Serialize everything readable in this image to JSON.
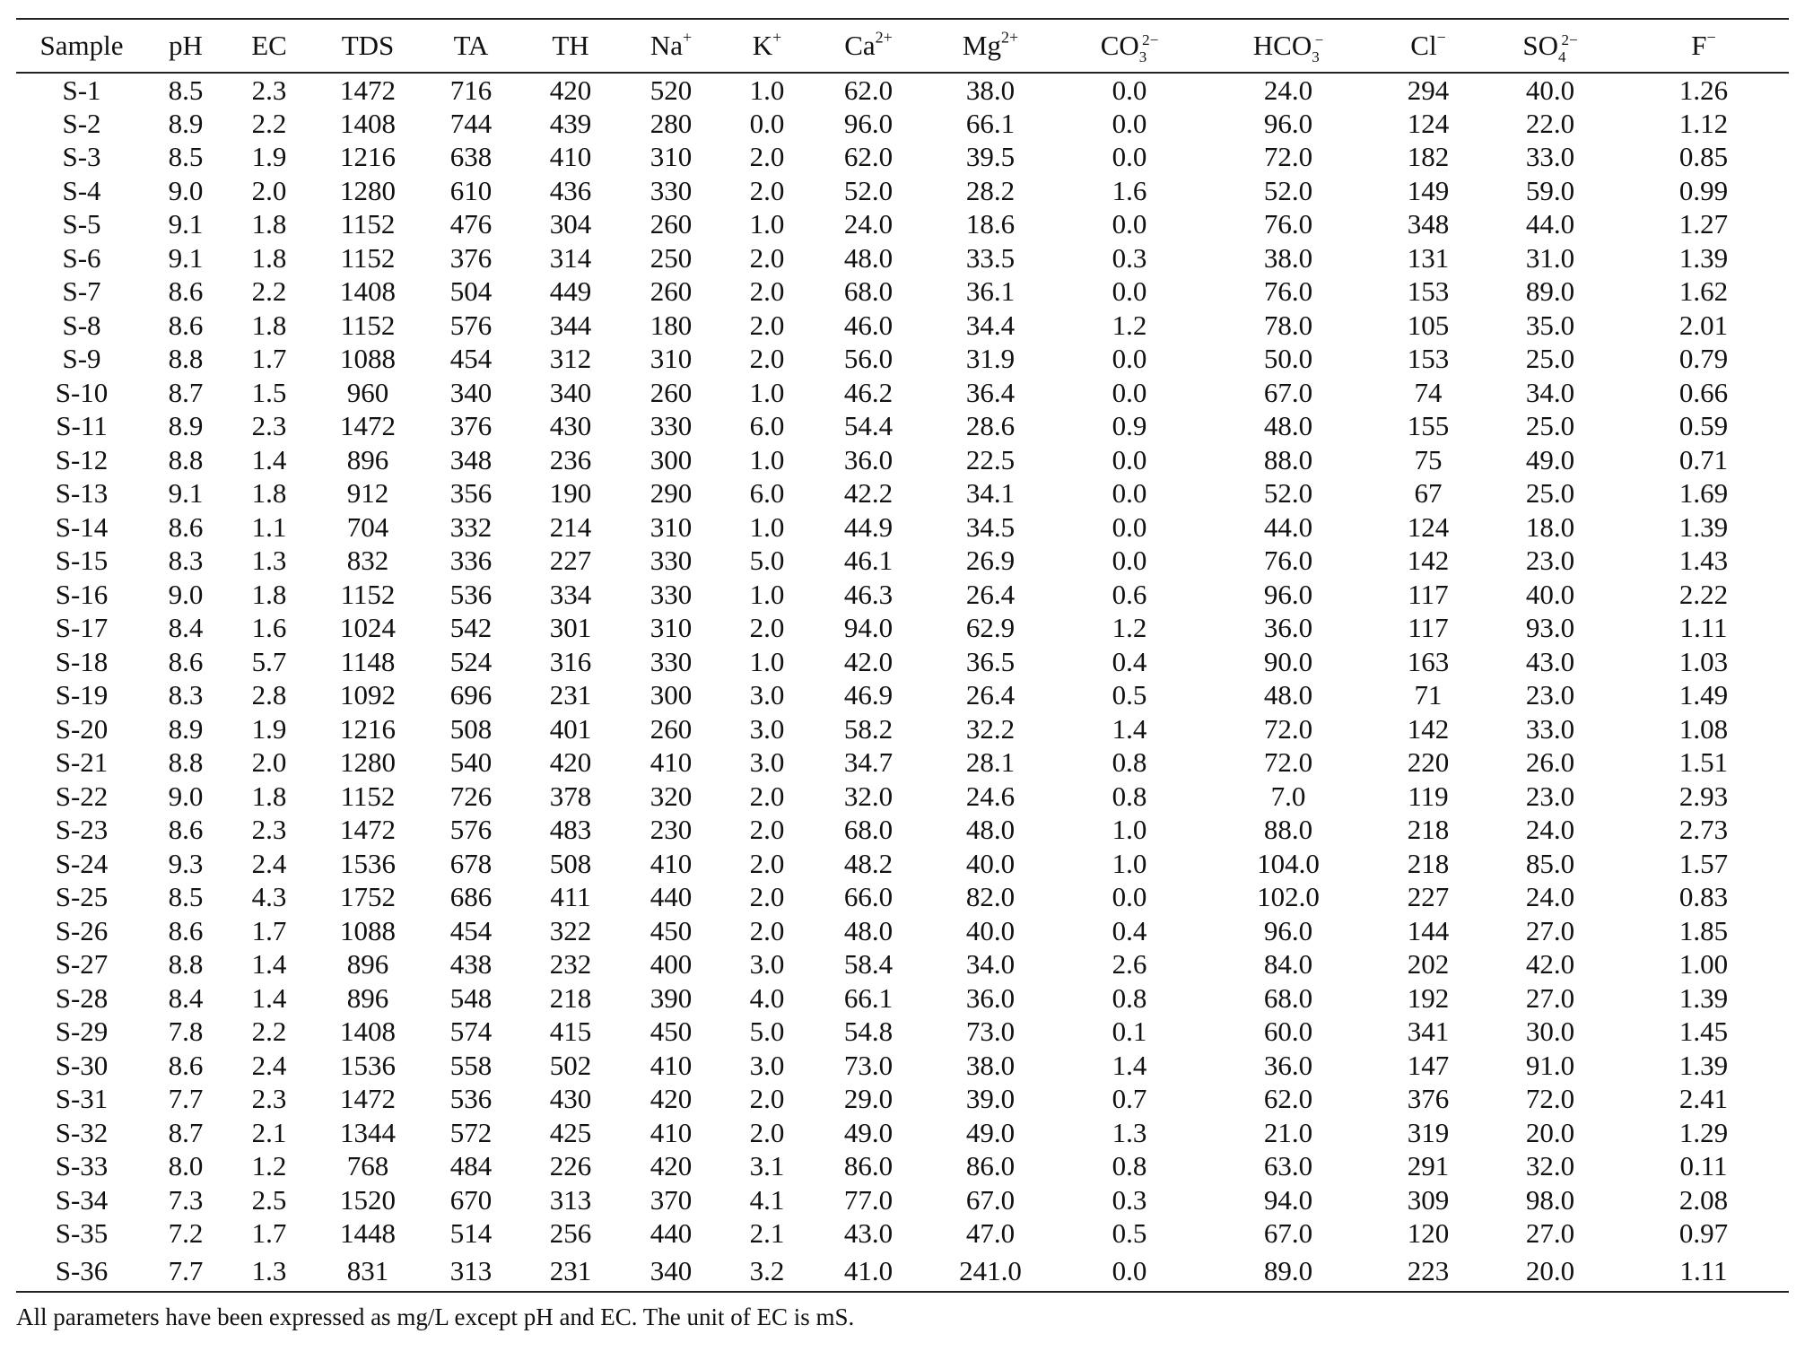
{
  "table": {
    "headers": {
      "sample": "Sample",
      "ph": "pH",
      "ec": "EC",
      "tds": "TDS",
      "ta": "TA",
      "th": "TH",
      "na": {
        "base": "Na",
        "sup": "+"
      },
      "k": {
        "base": "K",
        "sup": "+"
      },
      "ca": {
        "base": "Ca",
        "sup": "2+"
      },
      "mg": {
        "base": "Mg",
        "sup": "2+"
      },
      "co3": {
        "base": "CO",
        "sub": "3",
        "sup": "2−"
      },
      "hco3": {
        "base": "HCO",
        "sub": "3",
        "sup": "−"
      },
      "cl": {
        "base": "Cl",
        "sup": "−"
      },
      "so4": {
        "base": "SO",
        "sub": "4",
        "sup": "2−"
      },
      "f": {
        "base": "F",
        "sup": "−"
      }
    },
    "rows": [
      [
        "S-1",
        "8.5",
        "2.3",
        "1472",
        "716",
        "420",
        "520",
        "1.0",
        "62.0",
        "38.0",
        "0.0",
        "24.0",
        "294",
        "40.0",
        "1.26"
      ],
      [
        "S-2",
        "8.9",
        "2.2",
        "1408",
        "744",
        "439",
        "280",
        "0.0",
        "96.0",
        "66.1",
        "0.0",
        "96.0",
        "124",
        "22.0",
        "1.12"
      ],
      [
        "S-3",
        "8.5",
        "1.9",
        "1216",
        "638",
        "410",
        "310",
        "2.0",
        "62.0",
        "39.5",
        "0.0",
        "72.0",
        "182",
        "33.0",
        "0.85"
      ],
      [
        "S-4",
        "9.0",
        "2.0",
        "1280",
        "610",
        "436",
        "330",
        "2.0",
        "52.0",
        "28.2",
        "1.6",
        "52.0",
        "149",
        "59.0",
        "0.99"
      ],
      [
        "S-5",
        "9.1",
        "1.8",
        "1152",
        "476",
        "304",
        "260",
        "1.0",
        "24.0",
        "18.6",
        "0.0",
        "76.0",
        "348",
        "44.0",
        "1.27"
      ],
      [
        "S-6",
        "9.1",
        "1.8",
        "1152",
        "376",
        "314",
        "250",
        "2.0",
        "48.0",
        "33.5",
        "0.3",
        "38.0",
        "131",
        "31.0",
        "1.39"
      ],
      [
        "S-7",
        "8.6",
        "2.2",
        "1408",
        "504",
        "449",
        "260",
        "2.0",
        "68.0",
        "36.1",
        "0.0",
        "76.0",
        "153",
        "89.0",
        "1.62"
      ],
      [
        "S-8",
        "8.6",
        "1.8",
        "1152",
        "576",
        "344",
        "180",
        "2.0",
        "46.0",
        "34.4",
        "1.2",
        "78.0",
        "105",
        "35.0",
        "2.01"
      ],
      [
        "S-9",
        "8.8",
        "1.7",
        "1088",
        "454",
        "312",
        "310",
        "2.0",
        "56.0",
        "31.9",
        "0.0",
        "50.0",
        "153",
        "25.0",
        "0.79"
      ],
      [
        "S-10",
        "8.7",
        "1.5",
        "960",
        "340",
        "340",
        "260",
        "1.0",
        "46.2",
        "36.4",
        "0.0",
        "67.0",
        "74",
        "34.0",
        "0.66"
      ],
      [
        "S-11",
        "8.9",
        "2.3",
        "1472",
        "376",
        "430",
        "330",
        "6.0",
        "54.4",
        "28.6",
        "0.9",
        "48.0",
        "155",
        "25.0",
        "0.59"
      ],
      [
        "S-12",
        "8.8",
        "1.4",
        "896",
        "348",
        "236",
        "300",
        "1.0",
        "36.0",
        "22.5",
        "0.0",
        "88.0",
        "75",
        "49.0",
        "0.71"
      ],
      [
        "S-13",
        "9.1",
        "1.8",
        "912",
        "356",
        "190",
        "290",
        "6.0",
        "42.2",
        "34.1",
        "0.0",
        "52.0",
        "67",
        "25.0",
        "1.69"
      ],
      [
        "S-14",
        "8.6",
        "1.1",
        "704",
        "332",
        "214",
        "310",
        "1.0",
        "44.9",
        "34.5",
        "0.0",
        "44.0",
        "124",
        "18.0",
        "1.39"
      ],
      [
        "S-15",
        "8.3",
        "1.3",
        "832",
        "336",
        "227",
        "330",
        "5.0",
        "46.1",
        "26.9",
        "0.0",
        "76.0",
        "142",
        "23.0",
        "1.43"
      ],
      [
        "S-16",
        "9.0",
        "1.8",
        "1152",
        "536",
        "334",
        "330",
        "1.0",
        "46.3",
        "26.4",
        "0.6",
        "96.0",
        "117",
        "40.0",
        "2.22"
      ],
      [
        "S-17",
        "8.4",
        "1.6",
        "1024",
        "542",
        "301",
        "310",
        "2.0",
        "94.0",
        "62.9",
        "1.2",
        "36.0",
        "117",
        "93.0",
        "1.11"
      ],
      [
        "S-18",
        "8.6",
        "5.7",
        "1148",
        "524",
        "316",
        "330",
        "1.0",
        "42.0",
        "36.5",
        "0.4",
        "90.0",
        "163",
        "43.0",
        "1.03"
      ],
      [
        "S-19",
        "8.3",
        "2.8",
        "1092",
        "696",
        "231",
        "300",
        "3.0",
        "46.9",
        "26.4",
        "0.5",
        "48.0",
        "71",
        "23.0",
        "1.49"
      ],
      [
        "S-20",
        "8.9",
        "1.9",
        "1216",
        "508",
        "401",
        "260",
        "3.0",
        "58.2",
        "32.2",
        "1.4",
        "72.0",
        "142",
        "33.0",
        "1.08"
      ],
      [
        "S-21",
        "8.8",
        "2.0",
        "1280",
        "540",
        "420",
        "410",
        "3.0",
        "34.7",
        "28.1",
        "0.8",
        "72.0",
        "220",
        "26.0",
        "1.51"
      ],
      [
        "S-22",
        "9.0",
        "1.8",
        "1152",
        "726",
        "378",
        "320",
        "2.0",
        "32.0",
        "24.6",
        "0.8",
        "7.0",
        "119",
        "23.0",
        "2.93"
      ],
      [
        "S-23",
        "8.6",
        "2.3",
        "1472",
        "576",
        "483",
        "230",
        "2.0",
        "68.0",
        "48.0",
        "1.0",
        "88.0",
        "218",
        "24.0",
        "2.73"
      ],
      [
        "S-24",
        "9.3",
        "2.4",
        "1536",
        "678",
        "508",
        "410",
        "2.0",
        "48.2",
        "40.0",
        "1.0",
        "104.0",
        "218",
        "85.0",
        "1.57"
      ],
      [
        "S-25",
        "8.5",
        "4.3",
        "1752",
        "686",
        "411",
        "440",
        "2.0",
        "66.0",
        "82.0",
        "0.0",
        "102.0",
        "227",
        "24.0",
        "0.83"
      ],
      [
        "S-26",
        "8.6",
        "1.7",
        "1088",
        "454",
        "322",
        "450",
        "2.0",
        "48.0",
        "40.0",
        "0.4",
        "96.0",
        "144",
        "27.0",
        "1.85"
      ],
      [
        "S-27",
        "8.8",
        "1.4",
        "896",
        "438",
        "232",
        "400",
        "3.0",
        "58.4",
        "34.0",
        "2.6",
        "84.0",
        "202",
        "42.0",
        "1.00"
      ],
      [
        "S-28",
        "8.4",
        "1.4",
        "896",
        "548",
        "218",
        "390",
        "4.0",
        "66.1",
        "36.0",
        "0.8",
        "68.0",
        "192",
        "27.0",
        "1.39"
      ],
      [
        "S-29",
        "7.8",
        "2.2",
        "1408",
        "574",
        "415",
        "450",
        "5.0",
        "54.8",
        "73.0",
        "0.1",
        "60.0",
        "341",
        "30.0",
        "1.45"
      ],
      [
        "S-30",
        "8.6",
        "2.4",
        "1536",
        "558",
        "502",
        "410",
        "3.0",
        "73.0",
        "38.0",
        "1.4",
        "36.0",
        "147",
        "91.0",
        "1.39"
      ],
      [
        "S-31",
        "7.7",
        "2.3",
        "1472",
        "536",
        "430",
        "420",
        "2.0",
        "29.0",
        "39.0",
        "0.7",
        "62.0",
        "376",
        "72.0",
        "2.41"
      ],
      [
        "S-32",
        "8.7",
        "2.1",
        "1344",
        "572",
        "425",
        "410",
        "2.0",
        "49.0",
        "49.0",
        "1.3",
        "21.0",
        "319",
        "20.0",
        "1.29"
      ],
      [
        "S-33",
        "8.0",
        "1.2",
        "768",
        "484",
        "226",
        "420",
        "3.1",
        "86.0",
        "86.0",
        "0.8",
        "63.0",
        "291",
        "32.0",
        "0.11"
      ],
      [
        "S-34",
        "7.3",
        "2.5",
        "1520",
        "670",
        "313",
        "370",
        "4.1",
        "77.0",
        "67.0",
        "0.3",
        "94.0",
        "309",
        "98.0",
        "2.08"
      ],
      [
        "S-35",
        "7.2",
        "1.7",
        "1448",
        "514",
        "256",
        "440",
        "2.1",
        "43.0",
        "47.0",
        "0.5",
        "67.0",
        "120",
        "27.0",
        "0.97"
      ],
      [
        "S-36",
        "7.7",
        "1.3",
        "831",
        "313",
        "231",
        "340",
        "3.2",
        "41.0",
        "241.0",
        "0.0",
        "89.0",
        "223",
        "20.0",
        "1.11"
      ]
    ]
  },
  "footnote": "All parameters have been expressed as mg/L except pH and EC. The unit of EC is mS."
}
